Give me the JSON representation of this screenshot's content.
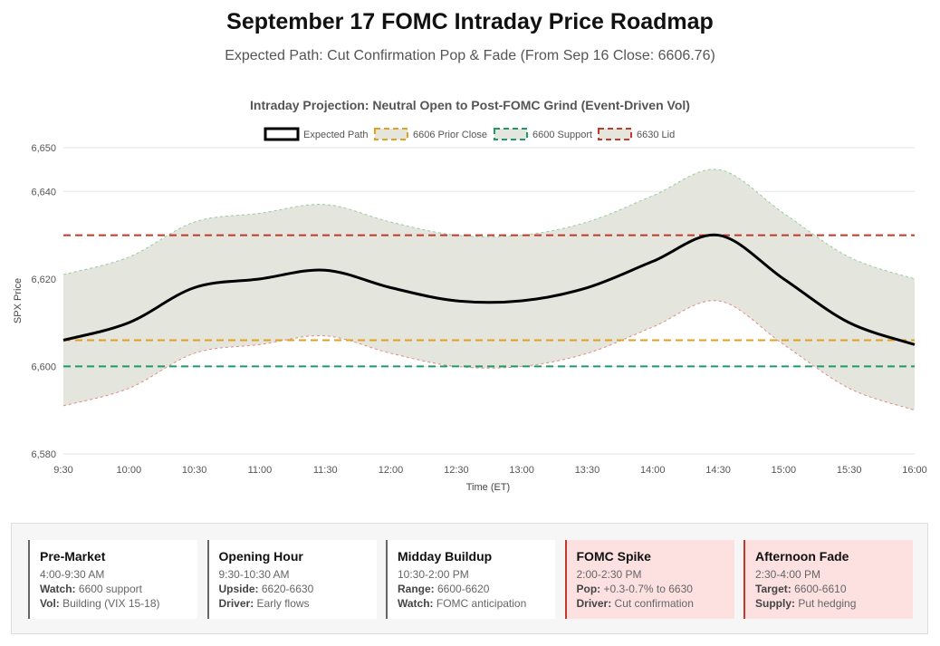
{
  "header": {
    "title": "September 17 FOMC Intraday Price Roadmap",
    "subtitle": "Expected Path: Cut Confirmation Pop & Fade (From Sep 16 Close: 6606.76)"
  },
  "chart_data": {
    "type": "line",
    "title": "Intraday Projection: Neutral Open to Post-FOMC Grind (Event-Driven Vol)",
    "xlabel": "Time (ET)",
    "ylabel": "SPX Price",
    "ylim": [
      6580,
      6650
    ],
    "yticks": [
      6650,
      6640,
      6620,
      6600,
      6580
    ],
    "ytick_labels": [
      "6,650",
      "6,640",
      "6,620",
      "6,600",
      "6,580"
    ],
    "categories": [
      "9:30",
      "10:00",
      "10:30",
      "11:00",
      "11:30",
      "12:00",
      "12:30",
      "13:00",
      "13:30",
      "14:00",
      "14:30",
      "15:00",
      "15:30",
      "16:00"
    ],
    "legend": [
      "Expected Path",
      "6606 Prior Close",
      "6600 Support",
      "6630 Lid"
    ],
    "legend_position": "top",
    "series": [
      {
        "name": "Expected Path",
        "color": "#000000",
        "values": [
          6606,
          6610,
          6618,
          6620,
          6622,
          6618,
          6615,
          6615,
          6618,
          6624,
          6630,
          6620,
          6610,
          6605
        ]
      },
      {
        "name": "Upper Band",
        "color": "#8fcf9f",
        "values": [
          6621,
          6625,
          6633,
          6635,
          6637,
          6633,
          6630,
          6630,
          6633,
          6639,
          6645,
          6635,
          6625,
          6620
        ]
      },
      {
        "name": "Lower Band",
        "color": "#e08a80",
        "values": [
          6591,
          6595,
          6603,
          6605,
          6607,
          6603,
          6600,
          6600,
          6603,
          6609,
          6615,
          6605,
          6595,
          6590
        ]
      }
    ],
    "hlines": [
      {
        "name": "6606 Prior Close",
        "value": 6606,
        "color": "#e0a020"
      },
      {
        "name": "6600 Support",
        "value": 6600,
        "color": "#1e9a6a"
      },
      {
        "name": "6630 Lid",
        "value": 6630,
        "color": "#c0392b"
      }
    ],
    "band_fill": "#e4e5dc"
  },
  "cards": [
    {
      "title": "Pre-Market",
      "time": "4:00-9:30 AM",
      "k1": "Watch:",
      "v1": " 6600 support",
      "k2": "Vol:",
      "v2": " Building (VIX 15-18)"
    },
    {
      "title": "Opening Hour",
      "time": "9:30-10:30 AM",
      "k1": "Upside:",
      "v1": " 6620-6630",
      "k2": "Driver:",
      "v2": " Early flows"
    },
    {
      "title": "Midday Buildup",
      "time": "10:30-2:00 PM",
      "k1": "Range:",
      "v1": " 6600-6620",
      "k2": "Watch:",
      "v2": " FOMC anticipation"
    },
    {
      "title": "FOMC Spike",
      "time": "2:00-2:30 PM",
      "k1": "Pop:",
      "v1": " +0.3-0.7% to 6630",
      "k2": "Driver:",
      "v2": " Cut confirmation"
    },
    {
      "title": "Afternoon Fade",
      "time": "2:30-4:00 PM",
      "k1": "Target:",
      "v1": " 6600-6610",
      "k2": "Supply:",
      "v2": " Put hedging"
    }
  ]
}
